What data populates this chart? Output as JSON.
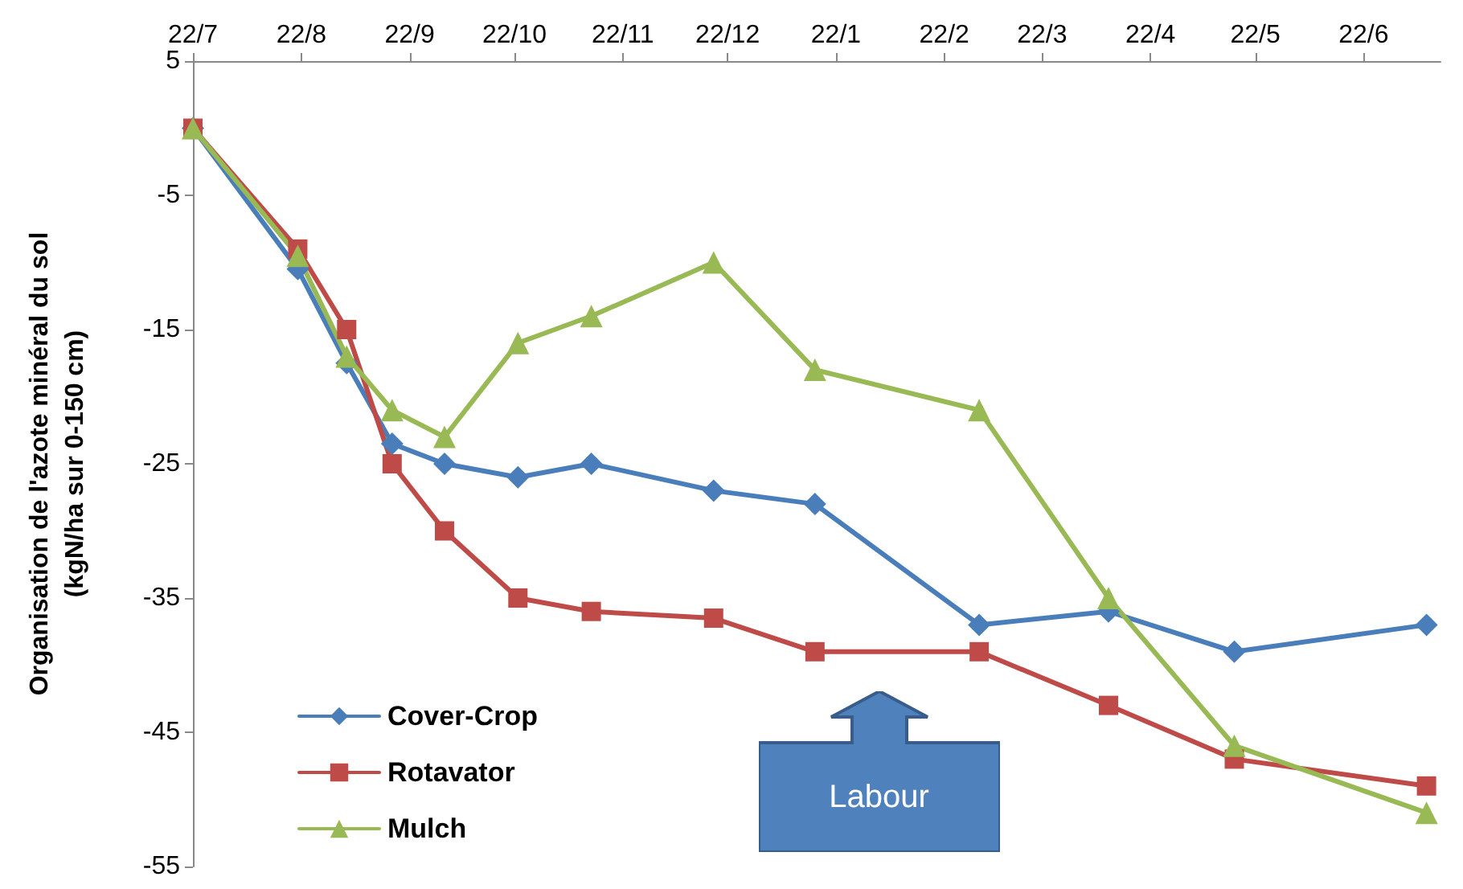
{
  "chart_data": {
    "type": "line",
    "ylabel": "Organisation de l'azote minéral du sol\n(kgN/ha sur 0-150 cm)",
    "xlim": [
      "2010-07-22",
      "2011-07-14"
    ],
    "xticks": [
      {
        "value": "2010-07-22",
        "label": "22/7"
      },
      {
        "value": "2010-08-22",
        "label": "22/8"
      },
      {
        "value": "2010-09-22",
        "label": "22/9"
      },
      {
        "value": "2010-10-22",
        "label": "22/10"
      },
      {
        "value": "2010-11-22",
        "label": "22/11"
      },
      {
        "value": "2010-12-22",
        "label": "22/12"
      },
      {
        "value": "2011-01-22",
        "label": "22/1"
      },
      {
        "value": "2011-02-22",
        "label": "22/2"
      },
      {
        "value": "2011-03-22",
        "label": "22/3"
      },
      {
        "value": "2011-04-22",
        "label": "22/4"
      },
      {
        "value": "2011-05-22",
        "label": "22/5"
      },
      {
        "value": "2011-06-22",
        "label": "22/6"
      }
    ],
    "ylim": [
      -55,
      5
    ],
    "yticks": [
      -55,
      -45,
      -35,
      -25,
      -15,
      -5,
      5
    ],
    "x": [
      "2010-07-22",
      "2010-08-21",
      "2010-09-04",
      "2010-09-17",
      "2010-10-02",
      "2010-10-23",
      "2010-11-13",
      "2010-12-18",
      "2011-01-16",
      "2011-03-04",
      "2011-04-10",
      "2011-05-16",
      "2011-07-10"
    ],
    "series": [
      {
        "name": "Cover-Crop",
        "color": "#4a7ebb",
        "marker": "diamond",
        "values": [
          0,
          -10.5,
          -17.5,
          -23.5,
          -25,
          -26,
          -25,
          -27,
          -28,
          -37,
          -36,
          -39,
          -37
        ]
      },
      {
        "name": "Rotavator",
        "color": "#be4b48",
        "marker": "square",
        "values": [
          0,
          -9,
          -15,
          -25,
          -30,
          -35,
          -36,
          -36.5,
          -39,
          -39,
          -43,
          -47,
          -49
        ]
      },
      {
        "name": "Mulch",
        "color": "#98b954",
        "marker": "triangle",
        "values": [
          0,
          -9.5,
          -17,
          -21,
          -23,
          -16,
          -14,
          -10,
          -18,
          -21,
          -35,
          -46,
          -51
        ]
      }
    ],
    "annotations": [
      "Labour"
    ],
    "legend": "bottom left",
    "grid": false,
    "line_style": "solid"
  }
}
